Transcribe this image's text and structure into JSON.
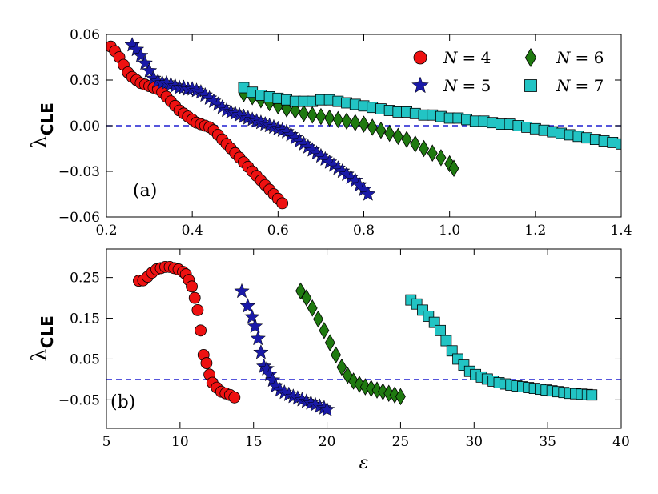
{
  "chart_data": [
    {
      "type": "scatter",
      "panel_label": "(a)",
      "title": "",
      "xlabel": "",
      "ylabel": "λ",
      "ylabel_sub": "CLE",
      "xlim": [
        0.2,
        1.4
      ],
      "ylim": [
        -0.06,
        0.06
      ],
      "xticks": [
        0.2,
        0.4,
        0.6,
        0.8,
        1.0,
        1.2,
        1.4
      ],
      "xtick_labels": [
        "0.2",
        "0.4",
        "0.6",
        "0.8",
        "1.0",
        "1.2",
        "1.4"
      ],
      "yticks": [
        -0.06,
        -0.03,
        0.0,
        0.03,
        0.06
      ],
      "ytick_labels": [
        "−0.06",
        "−0.03",
        "0.00",
        "0.03",
        "0.06"
      ],
      "reference_line_y": 0,
      "legend_position": "top-right",
      "series": [
        {
          "name": "N = 4",
          "legend_lhs": "N",
          "legend_rhs": "= 4",
          "marker": "circle",
          "color": "#ee1111",
          "x": [
            0.21,
            0.22,
            0.23,
            0.24,
            0.25,
            0.26,
            0.27,
            0.28,
            0.29,
            0.3,
            0.31,
            0.32,
            0.33,
            0.34,
            0.35,
            0.36,
            0.37,
            0.38,
            0.39,
            0.4,
            0.41,
            0.42,
            0.43,
            0.44,
            0.45,
            0.46,
            0.47,
            0.48,
            0.49,
            0.5,
            0.51,
            0.52,
            0.53,
            0.54,
            0.55,
            0.56,
            0.57,
            0.58,
            0.59,
            0.6,
            0.61
          ],
          "y": [
            0.052,
            0.049,
            0.045,
            0.04,
            0.035,
            0.032,
            0.03,
            0.028,
            0.027,
            0.026,
            0.025,
            0.024,
            0.022,
            0.019,
            0.016,
            0.013,
            0.01,
            0.008,
            0.006,
            0.004,
            0.002,
            0.001,
            0.0,
            -0.001,
            -0.003,
            -0.006,
            -0.009,
            -0.012,
            -0.015,
            -0.018,
            -0.021,
            -0.024,
            -0.027,
            -0.03,
            -0.033,
            -0.036,
            -0.039,
            -0.042,
            -0.045,
            -0.048,
            -0.051
          ]
        },
        {
          "name": "N = 5",
          "legend_lhs": "N",
          "legend_rhs": "= 5",
          "marker": "star",
          "color": "#1a1aa8",
          "x": [
            0.26,
            0.27,
            0.28,
            0.29,
            0.3,
            0.31,
            0.32,
            0.33,
            0.34,
            0.35,
            0.36,
            0.37,
            0.38,
            0.39,
            0.4,
            0.41,
            0.42,
            0.43,
            0.44,
            0.45,
            0.46,
            0.47,
            0.48,
            0.49,
            0.5,
            0.51,
            0.52,
            0.53,
            0.54,
            0.55,
            0.56,
            0.57,
            0.58,
            0.59,
            0.6,
            0.61,
            0.62,
            0.63,
            0.64,
            0.65,
            0.66,
            0.67,
            0.68,
            0.69,
            0.7,
            0.71,
            0.72,
            0.73,
            0.74,
            0.75,
            0.76,
            0.77,
            0.78,
            0.79,
            0.8,
            0.81
          ],
          "y": [
            0.053,
            0.05,
            0.046,
            0.041,
            0.036,
            0.031,
            0.029,
            0.028,
            0.028,
            0.027,
            0.026,
            0.025,
            0.025,
            0.024,
            0.024,
            0.023,
            0.022,
            0.02,
            0.018,
            0.016,
            0.014,
            0.012,
            0.01,
            0.009,
            0.008,
            0.007,
            0.006,
            0.005,
            0.004,
            0.003,
            0.002,
            0.001,
            0.0,
            -0.001,
            -0.002,
            -0.003,
            -0.004,
            -0.006,
            -0.008,
            -0.01,
            -0.012,
            -0.014,
            -0.016,
            -0.018,
            -0.02,
            -0.022,
            -0.024,
            -0.026,
            -0.028,
            -0.03,
            -0.032,
            -0.034,
            -0.036,
            -0.039,
            -0.042,
            -0.045
          ]
        },
        {
          "name": "N = 6",
          "legend_lhs": "N",
          "legend_rhs": "= 6",
          "marker": "diamond",
          "color": "#1f7a10",
          "x": [
            0.52,
            0.54,
            0.56,
            0.58,
            0.6,
            0.62,
            0.64,
            0.66,
            0.68,
            0.7,
            0.72,
            0.74,
            0.76,
            0.78,
            0.8,
            0.82,
            0.84,
            0.86,
            0.88,
            0.9,
            0.92,
            0.94,
            0.96,
            0.98,
            1.0,
            1.01
          ],
          "y": [
            0.021,
            0.019,
            0.017,
            0.015,
            0.013,
            0.011,
            0.01,
            0.008,
            0.007,
            0.006,
            0.005,
            0.004,
            0.003,
            0.002,
            0.001,
            -0.001,
            -0.003,
            -0.005,
            -0.007,
            -0.009,
            -0.012,
            -0.015,
            -0.018,
            -0.021,
            -0.025,
            -0.028
          ]
        },
        {
          "name": "N = 7",
          "legend_lhs": "N",
          "legend_rhs": "= 7",
          "marker": "square",
          "color": "#22c4c4",
          "x": [
            0.52,
            0.54,
            0.56,
            0.58,
            0.6,
            0.62,
            0.64,
            0.66,
            0.68,
            0.7,
            0.72,
            0.74,
            0.76,
            0.78,
            0.8,
            0.82,
            0.84,
            0.86,
            0.88,
            0.9,
            0.92,
            0.94,
            0.96,
            0.98,
            1.0,
            1.02,
            1.04,
            1.06,
            1.08,
            1.1,
            1.12,
            1.14,
            1.16,
            1.18,
            1.2,
            1.22,
            1.24,
            1.26,
            1.28,
            1.3,
            1.32,
            1.34,
            1.36,
            1.38,
            1.4
          ],
          "y": [
            0.025,
            0.022,
            0.02,
            0.019,
            0.018,
            0.017,
            0.016,
            0.016,
            0.016,
            0.017,
            0.017,
            0.016,
            0.015,
            0.014,
            0.013,
            0.012,
            0.011,
            0.01,
            0.009,
            0.009,
            0.008,
            0.007,
            0.007,
            0.006,
            0.005,
            0.005,
            0.004,
            0.003,
            0.003,
            0.002,
            0.001,
            0.001,
            0.0,
            -0.001,
            -0.002,
            -0.003,
            -0.004,
            -0.005,
            -0.006,
            -0.007,
            -0.008,
            -0.009,
            -0.01,
            -0.011,
            -0.012
          ]
        }
      ]
    },
    {
      "type": "scatter",
      "panel_label": "(b)",
      "title": "",
      "xlabel": "ε",
      "ylabel": "λ",
      "ylabel_sub": "CLE",
      "xlim": [
        5,
        40
      ],
      "ylim": [
        -0.12,
        0.32
      ],
      "xticks": [
        5,
        10,
        15,
        20,
        25,
        30,
        35,
        40
      ],
      "xtick_labels": [
        "5",
        "10",
        "15",
        "20",
        "25",
        "30",
        "35",
        "40"
      ],
      "yticks": [
        -0.05,
        0.05,
        0.15,
        0.25
      ],
      "ytick_labels": [
        "−0.05",
        "0.05",
        "0.15",
        "0.25"
      ],
      "reference_line_y": 0,
      "series": [
        {
          "name": "N = 4",
          "marker": "circle",
          "color": "#ee1111",
          "x": [
            7.2,
            7.5,
            7.8,
            8.1,
            8.4,
            8.7,
            9.0,
            9.3,
            9.6,
            9.9,
            10.2,
            10.4,
            10.6,
            10.8,
            11.0,
            11.2,
            11.4,
            11.6,
            11.8,
            12.0,
            12.2,
            12.5,
            12.8,
            13.1,
            13.4,
            13.7
          ],
          "y": [
            0.242,
            0.243,
            0.252,
            0.262,
            0.27,
            0.273,
            0.276,
            0.276,
            0.273,
            0.27,
            0.264,
            0.258,
            0.244,
            0.228,
            0.2,
            0.17,
            0.12,
            0.06,
            0.04,
            0.012,
            -0.008,
            -0.02,
            -0.03,
            -0.034,
            -0.038,
            -0.044
          ]
        },
        {
          "name": "N = 5",
          "marker": "star",
          "color": "#1a1aa8",
          "x": [
            14.2,
            14.6,
            14.9,
            15.1,
            15.3,
            15.5,
            15.7,
            15.9,
            16.1,
            16.3,
            16.5,
            16.8,
            17.1,
            17.4,
            17.7,
            18.0,
            18.3,
            18.6,
            18.9,
            19.2,
            19.5,
            19.8,
            20.0
          ],
          "y": [
            0.216,
            0.18,
            0.153,
            0.13,
            0.1,
            0.066,
            0.032,
            0.026,
            0.012,
            -0.002,
            -0.016,
            -0.026,
            -0.032,
            -0.037,
            -0.042,
            -0.046,
            -0.05,
            -0.054,
            -0.058,
            -0.062,
            -0.066,
            -0.07,
            -0.074
          ]
        },
        {
          "name": "N = 6",
          "marker": "diamond",
          "color": "#1f7a10",
          "x": [
            18.2,
            18.6,
            19.0,
            19.4,
            19.8,
            20.2,
            20.6,
            21.0,
            21.4,
            21.8,
            22.2,
            22.6,
            23.0,
            23.4,
            23.8,
            24.2,
            24.6,
            25.0
          ],
          "y": [
            0.217,
            0.2,
            0.175,
            0.148,
            0.12,
            0.09,
            0.06,
            0.03,
            0.01,
            -0.004,
            -0.012,
            -0.018,
            -0.022,
            -0.026,
            -0.03,
            -0.034,
            -0.038,
            -0.042
          ]
        },
        {
          "name": "N = 7",
          "marker": "square",
          "color": "#22c4c4",
          "x": [
            25.7,
            26.1,
            26.5,
            26.9,
            27.3,
            27.7,
            28.1,
            28.5,
            28.9,
            29.3,
            29.7,
            30.1,
            30.5,
            30.9,
            31.3,
            31.7,
            32.1,
            32.5,
            32.9,
            33.3,
            33.7,
            34.1,
            34.5,
            34.9,
            35.3,
            35.7,
            36.1,
            36.5,
            36.9,
            37.3,
            37.7,
            38.0
          ],
          "y": [
            0.195,
            0.185,
            0.17,
            0.155,
            0.14,
            0.12,
            0.095,
            0.07,
            0.05,
            0.035,
            0.02,
            0.012,
            0.006,
            0.001,
            -0.004,
            -0.008,
            -0.011,
            -0.014,
            -0.016,
            -0.018,
            -0.02,
            -0.022,
            -0.024,
            -0.026,
            -0.028,
            -0.03,
            -0.032,
            -0.034,
            -0.035,
            -0.036,
            -0.037,
            -0.038
          ]
        }
      ]
    }
  ]
}
